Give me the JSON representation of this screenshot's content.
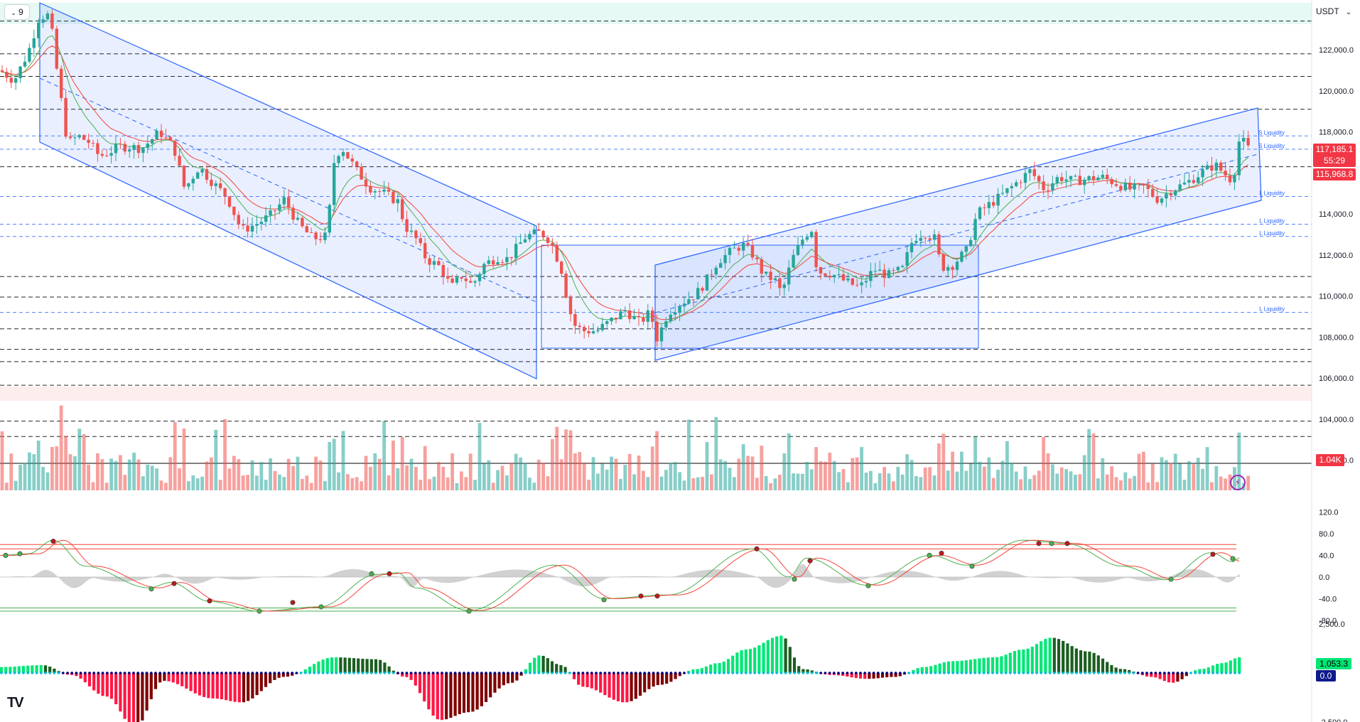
{
  "toolbar": {
    "interval_badge": "9",
    "currency": "USDT",
    "logo_text": "TV"
  },
  "colors": {
    "up": "#26a69a",
    "down": "#ef5350",
    "channel": "#2962ff",
    "channel_fill": "#2962ff",
    "ema_red": "#f44336",
    "ema_green": "#4caf50",
    "grid": "#000000",
    "price_badge": "#f23645",
    "vol_badge": "#f23645",
    "macd_up_strong": "#00e676",
    "macd_up_weak": "#1b5e20",
    "macd_down_strong": "#ff1744",
    "macd_down_weak": "#7f0000",
    "macd_line": "#000080",
    "macd_signal": "#00bcd4",
    "stoch_k": "#4caf50",
    "stoch_d": "#f44336",
    "hist_area": "#bdbdbd"
  },
  "chart_data": [
    {
      "type": "candlestick",
      "pair_quote": "USDT",
      "ylim": [
        106000,
        124000
      ],
      "price_axis_labels": [
        "122,000.0",
        "120,000.0",
        "118,000.0",
        "116,000.0",
        "114,000.0",
        "112,000.0",
        "110,000.0",
        "108,000.0",
        "106,000.0",
        "104,000.0",
        "102,000.0"
      ],
      "price_axis_values": [
        122000,
        120000,
        118000,
        116000,
        114000,
        112000,
        110000,
        108000,
        106000,
        104000,
        102000
      ],
      "levels": [
        {
          "price": 123400,
          "style": "dashed-black"
        },
        {
          "price": 121800,
          "style": "dashed-black"
        },
        {
          "price": 120700,
          "style": "dashed-black"
        },
        {
          "price": 119100,
          "style": "dashed-black"
        },
        {
          "price": 117800,
          "style": "dashed-blue",
          "label": "S Liquidity"
        },
        {
          "price": 117150,
          "style": "dashed-blue",
          "label": "S Liquidity"
        },
        {
          "price": 116300,
          "style": "dashed-black"
        },
        {
          "price": 114850,
          "style": "dashed-blue",
          "label": "L Liquidity"
        },
        {
          "price": 113500,
          "style": "dashed-blue",
          "label": "L Liquidity"
        },
        {
          "price": 112900,
          "style": "dashed-blue",
          "label": "L Liquidity"
        },
        {
          "price": 110950,
          "style": "dashed-black"
        },
        {
          "price": 109950,
          "style": "dashed-black"
        },
        {
          "price": 109200,
          "style": "dashed-blue",
          "label": "L Liquidity"
        },
        {
          "price": 108400,
          "style": "dashed-black"
        },
        {
          "price": 107400,
          "style": "dashed-black"
        },
        {
          "price": 106800,
          "style": "dashed-black"
        },
        {
          "price": 105650,
          "style": "dashed-black"
        },
        {
          "price": 103900,
          "style": "dashed-black"
        },
        {
          "price": 103150,
          "style": "dashed-black"
        }
      ],
      "last_price_label": "117,185.1",
      "countdown_label": "55:29",
      "second_price_label": "115,968.8",
      "volume_label": "1.04K"
    },
    {
      "type": "line",
      "name": "stochastic_rsi",
      "ylim": [
        -100,
        120
      ],
      "axis_labels": [
        "120.0",
        "80.0",
        "40.0",
        "0.0",
        "-40.0",
        "-80.0"
      ],
      "axis_values": [
        120,
        80,
        40,
        0,
        -40,
        -80
      ]
    },
    {
      "type": "bar",
      "name": "macd_histogram",
      "ylim": [
        -3500,
        3500
      ],
      "axis_labels": [
        "2,500.0",
        "-2,500.0"
      ],
      "axis_values": [
        2500,
        -2500
      ],
      "value_label": "1,053.3",
      "signal_label": "0.0"
    }
  ]
}
